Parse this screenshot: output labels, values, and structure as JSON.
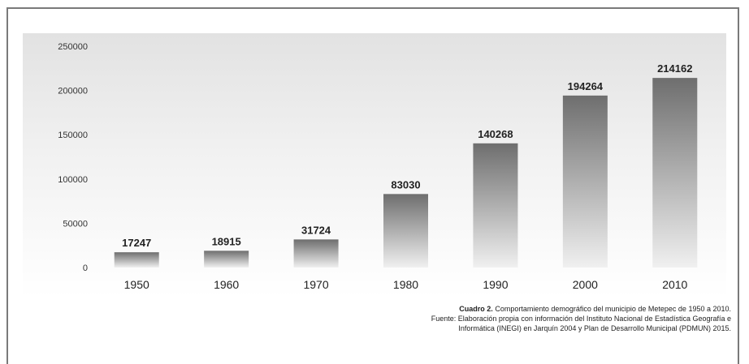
{
  "chart_data": {
    "type": "bar",
    "categories": [
      "1950",
      "1960",
      "1970",
      "1980",
      "1990",
      "2000",
      "2010"
    ],
    "values": [
      17247,
      18915,
      31724,
      83030,
      140268,
      194264,
      214162
    ],
    "yticks": [
      "0",
      "50000",
      "100000",
      "150000",
      "200000",
      "250000"
    ],
    "ylim": [
      0,
      250000
    ],
    "grid": false,
    "bar_color_top": "#6e6e6e",
    "bar_color_bottom": "#f0f0f0",
    "title": "",
    "xlabel": "",
    "ylabel": ""
  },
  "caption": {
    "label": "Cuadro 2.",
    "text": " Comportamiento demográfico del municipio de Metepec de 1950 a 2010.",
    "source_line1": "Fuente: Elaboración propia con información del Instituto Nacional de Estadística Geografía e",
    "source_line2": "Informática (INEGI) en Jarquín 2004 y Plan de Desarrollo Municipal (PDMUN) 2015."
  }
}
